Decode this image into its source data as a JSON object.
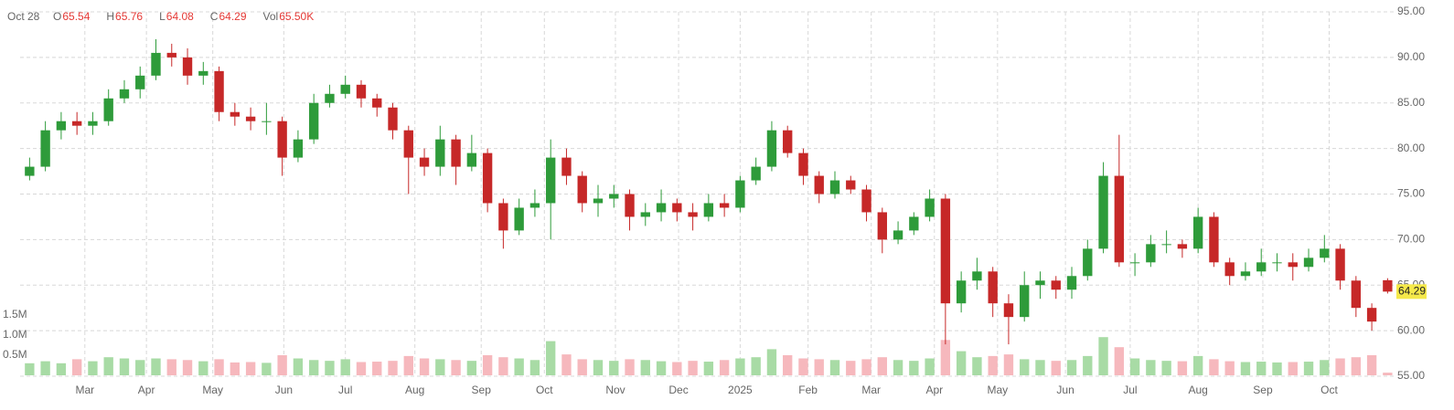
{
  "chart_data": {
    "type": "candlestick",
    "last_date": "Oct 28",
    "header_labels": {
      "open": "O",
      "high": "H",
      "low": "L",
      "close": "C",
      "volume": "Vol"
    },
    "last_volume_label": "65.50K",
    "up_color": "#2e9b3a",
    "down_color": "#c62828",
    "volume_up_color": "#a8dba5",
    "volume_down_color": "#f6b8bd",
    "open": [
      77,
      78,
      82,
      83,
      82.5,
      83,
      85.5,
      86.5,
      88,
      90.5,
      90,
      88,
      88.5,
      84,
      83.5,
      83,
      83,
      79,
      81,
      85,
      86,
      87,
      85.5,
      84.5,
      82,
      79,
      78,
      81,
      78,
      79.5,
      74,
      71,
      73.5,
      74,
      79,
      77,
      74,
      74.5,
      75,
      72.5,
      73,
      74,
      73,
      72.5,
      74,
      73.5,
      76.5,
      78,
      82,
      79.5,
      77,
      75,
      76.5,
      75.5,
      73,
      70,
      71,
      72.5,
      74.5,
      63,
      65.5,
      66.5,
      63,
      61.5,
      65,
      65.5,
      64.5,
      66,
      69,
      77,
      67.5,
      67.5,
      69.5,
      69.5,
      69,
      72.5,
      67.5,
      66,
      66.5,
      67.5,
      67.5,
      67,
      68,
      69,
      65.5,
      62.5,
      65.54
    ],
    "high": [
      79,
      83,
      84,
      84,
      84,
      86.5,
      87.5,
      89,
      92,
      91.5,
      91,
      89.5,
      89,
      85,
      84.5,
      85,
      83.5,
      82,
      86,
      87,
      88,
      87.5,
      86,
      85,
      82.5,
      80,
      82.5,
      81.5,
      81.5,
      80,
      74.5,
      74.5,
      75.5,
      81,
      80,
      77.5,
      76,
      76,
      75.5,
      74,
      75.5,
      74.5,
      74,
      75,
      75,
      77,
      79,
      83,
      82.5,
      80,
      77.5,
      77.5,
      77,
      76,
      73.5,
      72,
      73,
      75.5,
      75,
      66.5,
      68,
      67,
      64,
      66.5,
      66.5,
      66,
      67,
      70,
      78.5,
      81.5,
      68.5,
      70.5,
      71,
      70,
      73.5,
      73,
      68,
      67.5,
      69,
      68.5,
      68.5,
      69,
      70.5,
      69.5,
      66,
      63,
      65.76
    ],
    "low": [
      76.5,
      77.5,
      81,
      81.5,
      81.5,
      82.5,
      85,
      85.5,
      87.5,
      89,
      87,
      87,
      83,
      82.5,
      82,
      81.5,
      77,
      78.5,
      80.5,
      84.5,
      85.5,
      84.5,
      83.5,
      81,
      75,
      77,
      77,
      76,
      77.5,
      73,
      69,
      70.5,
      72.5,
      70,
      76,
      73,
      72.5,
      73.5,
      71,
      71.5,
      72,
      72,
      71,
      72,
      72.5,
      73,
      76,
      77.5,
      79,
      76,
      74,
      74.5,
      75,
      72,
      68.5,
      69.5,
      70.5,
      72,
      58.5,
      62,
      64.5,
      61.5,
      58.5,
      61,
      63.5,
      63.5,
      63.5,
      65.5,
      68.5,
      67,
      66,
      67,
      68.5,
      68,
      68.5,
      67,
      65,
      65.5,
      66,
      66.5,
      65.5,
      66.5,
      67.5,
      64.5,
      61.5,
      60,
      64.08
    ],
    "close": [
      78,
      82,
      83,
      82.5,
      83,
      85.5,
      86.5,
      88,
      90.5,
      90,
      88,
      88.5,
      84,
      83.5,
      83,
      83,
      79,
      81,
      85,
      86,
      87,
      85.5,
      84.5,
      82,
      79,
      78,
      81,
      78,
      79.5,
      74,
      71,
      73.5,
      74,
      79,
      77,
      74,
      74.5,
      75,
      72.5,
      73,
      74,
      73,
      72.5,
      74,
      73.5,
      76.5,
      78,
      82,
      79.5,
      77,
      75,
      76.5,
      75.5,
      73,
      70,
      71,
      72.5,
      74.5,
      63,
      65.5,
      66.5,
      63,
      61.5,
      65,
      65.5,
      64.5,
      66,
      69,
      77,
      67.5,
      67.5,
      69.5,
      69.5,
      69,
      72.5,
      67.5,
      66,
      66.5,
      67.5,
      67.5,
      67,
      68,
      69,
      65.5,
      62.5,
      61,
      64.29
    ],
    "volume": [
      300000,
      350000,
      300000,
      400000,
      350000,
      450000,
      420000,
      380000,
      420000,
      400000,
      380000,
      350000,
      400000,
      320000,
      330000,
      310000,
      500000,
      420000,
      380000,
      360000,
      400000,
      330000,
      340000,
      360000,
      480000,
      420000,
      400000,
      380000,
      360000,
      500000,
      450000,
      420000,
      380000,
      850000,
      520000,
      400000,
      380000,
      360000,
      400000,
      380000,
      350000,
      330000,
      360000,
      340000,
      380000,
      420000,
      450000,
      650000,
      500000,
      420000,
      400000,
      380000,
      360000,
      400000,
      450000,
      380000,
      360000,
      420000,
      880000,
      600000,
      450000,
      480000,
      520000,
      400000,
      380000,
      360000,
      380000,
      480000,
      950000,
      700000,
      420000,
      380000,
      360000,
      350000,
      480000,
      400000,
      350000,
      330000,
      340000,
      320000,
      330000,
      340000,
      380000,
      420000,
      450000,
      500000,
      65500
    ],
    "xlim": [
      -0.6,
      86.5
    ],
    "xticks": [
      {
        "value": 3.5,
        "label": "Mar"
      },
      {
        "value": 7.4,
        "label": "Apr"
      },
      {
        "value": 11.6,
        "label": "May"
      },
      {
        "value": 16.1,
        "label": "Jun"
      },
      {
        "value": 20.0,
        "label": "Jul"
      },
      {
        "value": 24.4,
        "label": "Aug"
      },
      {
        "value": 28.6,
        "label": "Sep"
      },
      {
        "value": 32.6,
        "label": "Oct"
      },
      {
        "value": 37.1,
        "label": "Nov"
      },
      {
        "value": 41.1,
        "label": "Dec"
      },
      {
        "value": 45.0,
        "label": "2025"
      },
      {
        "value": 49.3,
        "label": "Feb"
      },
      {
        "value": 53.3,
        "label": "Mar"
      },
      {
        "value": 57.3,
        "label": "Apr"
      },
      {
        "value": 61.3,
        "label": "May"
      },
      {
        "value": 65.6,
        "label": "Jun"
      },
      {
        "value": 69.7,
        "label": "Jul"
      },
      {
        "value": 74.0,
        "label": "Aug"
      },
      {
        "value": 78.1,
        "label": "Sep"
      },
      {
        "value": 82.3,
        "label": "Oct"
      }
    ],
    "ylim": [
      55,
      95
    ],
    "yticks": [
      {
        "value": 55,
        "label": "55.00"
      },
      {
        "value": 60,
        "label": "60.00"
      },
      {
        "value": 65,
        "label": "65.00"
      },
      {
        "value": 70,
        "label": "70.00"
      },
      {
        "value": 75,
        "label": "75.00"
      },
      {
        "value": 80,
        "label": "80.00"
      },
      {
        "value": 85,
        "label": "85.00"
      },
      {
        "value": 90,
        "label": "90.00"
      },
      {
        "value": 95,
        "label": "95.00"
      }
    ],
    "volume_ylim": [
      0,
      1500000
    ],
    "volume_ticks": [
      {
        "value": 500000,
        "label": "0.5M"
      },
      {
        "value": 1000000,
        "label": "1.0M"
      },
      {
        "value": 1500000,
        "label": "1.5M"
      }
    ],
    "grid": true
  }
}
